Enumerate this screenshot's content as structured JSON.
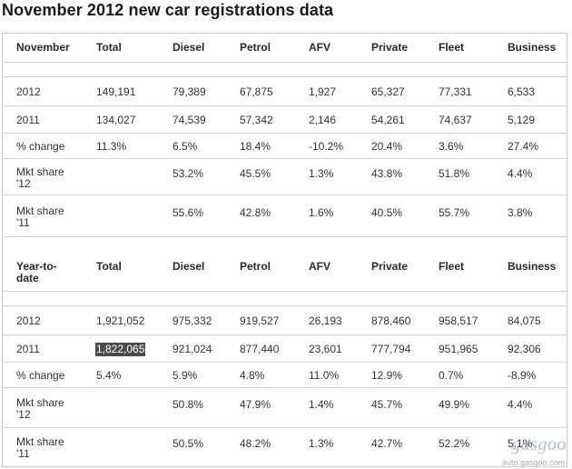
{
  "title": "November 2012 new car registrations data",
  "november": {
    "headers": [
      "November",
      "Total",
      "Diesel",
      "Petrol",
      "AFV",
      "Private",
      "Fleet",
      "Business"
    ],
    "rows": [
      {
        "label": "2012",
        "cells": [
          "149,191",
          "79,389",
          "67,875",
          "1,927",
          "65,327",
          "77,331",
          "6,533"
        ]
      },
      {
        "label": "2011",
        "cells": [
          "134,027",
          "74,539",
          "57,342",
          "2,146",
          "54,261",
          "74,637",
          "5,129"
        ]
      },
      {
        "label": "% change",
        "cells": [
          "11.3%",
          "6.5%",
          "18.4%",
          "-10.2%",
          "20.4%",
          "3.6%",
          "27.4%"
        ]
      },
      {
        "label": "Mkt share '12",
        "cells": [
          "",
          "53.2%",
          "45.5%",
          "1.3%",
          "43.8%",
          "51.8%",
          "4.4%"
        ]
      },
      {
        "label": "Mkt share '11",
        "cells": [
          "",
          "55.6%",
          "42.8%",
          "1.6%",
          "40.5%",
          "55.7%",
          "3.8%"
        ]
      }
    ]
  },
  "ytd": {
    "headers": [
      "Year-to-date",
      "Total",
      "Diesel",
      "Petrol",
      "AFV",
      "Private",
      "Fleet",
      "Business"
    ],
    "rows": [
      {
        "label": "2012",
        "cells": [
          "1,921,052",
          "975,332",
          "919,527",
          "26,193",
          "878,460",
          "958,517",
          "84,075"
        ]
      },
      {
        "label": "2011",
        "cells": [
          "1,822,065",
          "921,024",
          "877,440",
          "23,601",
          "777,794",
          "951,965",
          "92,306"
        ]
      },
      {
        "label": "% change",
        "cells": [
          "5.4%",
          "5.9%",
          "4.8%",
          "11.0%",
          "12.9%",
          "0.7%",
          "-8.9%"
        ]
      },
      {
        "label": "Mkt share '12",
        "cells": [
          "",
          "50.8%",
          "47.9%",
          "1.4%",
          "45.7%",
          "49.9%",
          "4.4%"
        ]
      },
      {
        "label": "Mkt share '11",
        "cells": [
          "",
          "50.5%",
          "48.2%",
          "1.3%",
          "42.7%",
          "52.2%",
          "5.1%"
        ]
      }
    ]
  },
  "watermark": {
    "logo": "gasgoo",
    "url": "auto.gasgoo.com"
  }
}
